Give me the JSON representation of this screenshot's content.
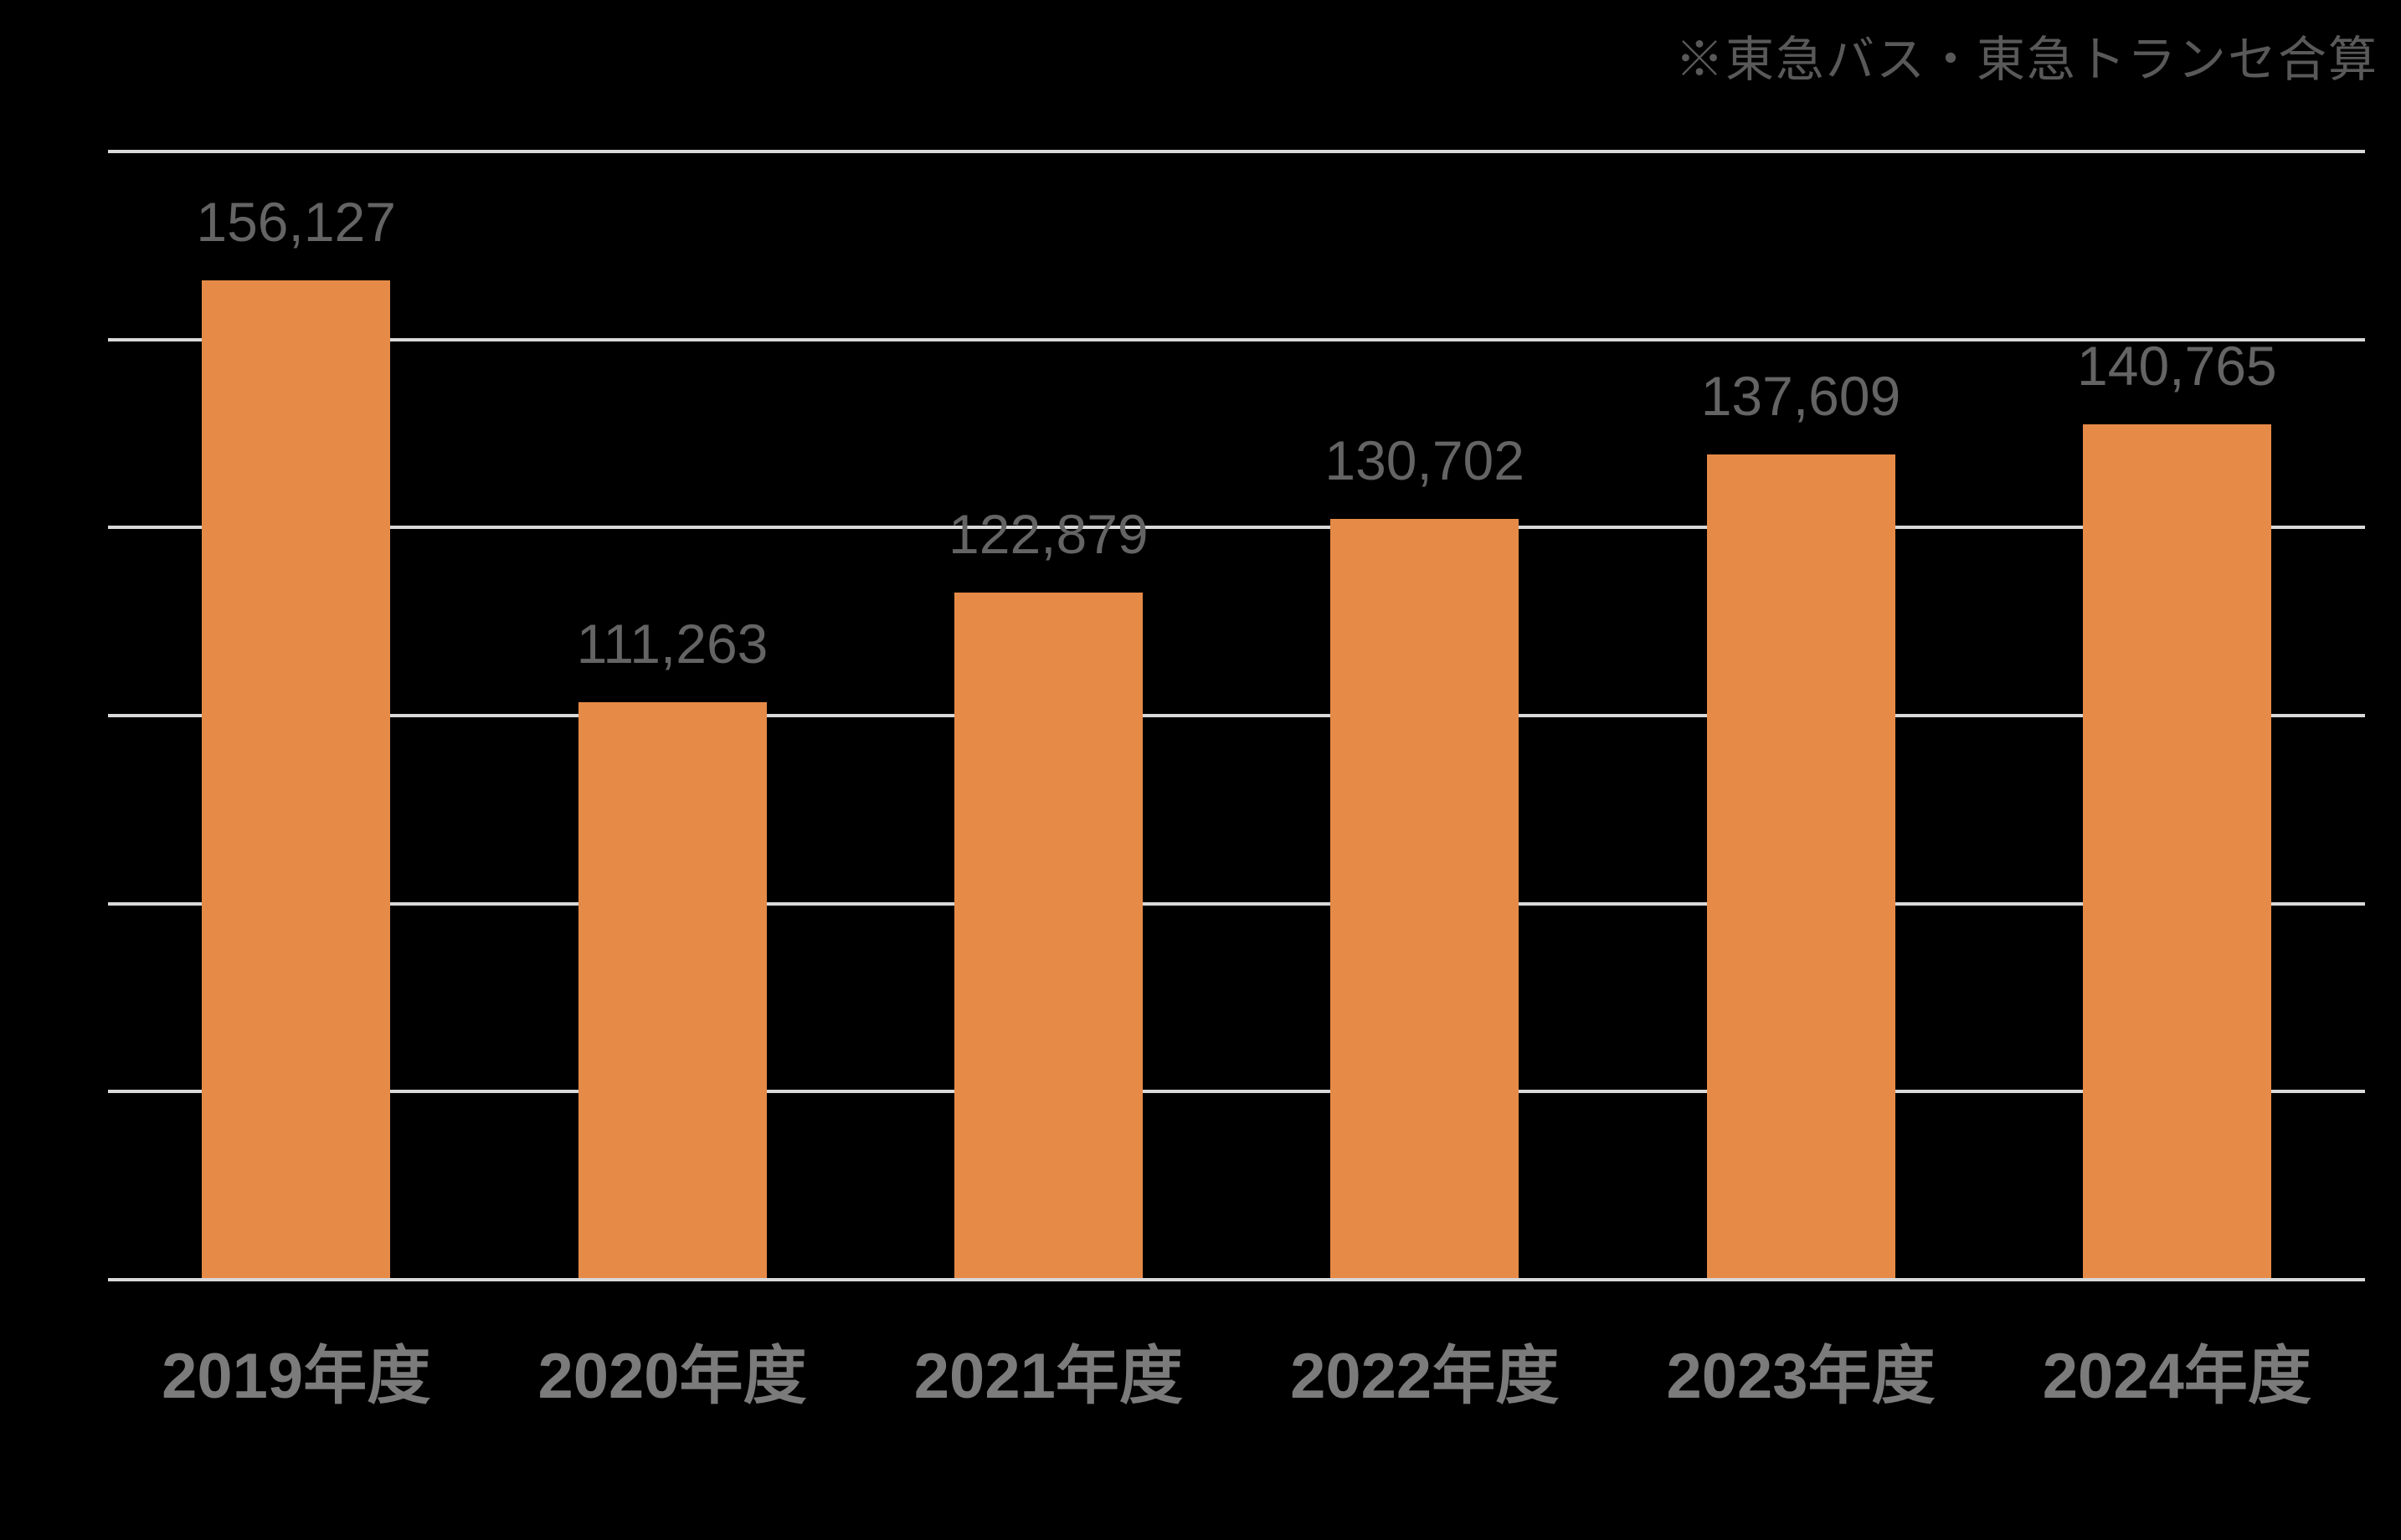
{
  "annotation": "※東急バス・東急トランセ合算",
  "colors": {
    "background": "#000000",
    "bar": "#E68A47",
    "gridline": "#D9D9D9",
    "value_label": "#646464",
    "axis_label": "#7B7B7B",
    "annotation": "#595959"
  },
  "chart_data": {
    "type": "bar",
    "title": "",
    "xlabel": "",
    "ylabel": "",
    "annotation": "※東急バス・東急トランセ合算",
    "categories": [
      "2019年度",
      "2020年度",
      "2021年度",
      "2022年度",
      "2023年度",
      "2024年度"
    ],
    "values": [
      156127,
      111263,
      122879,
      130702,
      137609,
      140765
    ],
    "value_labels": [
      "156,127",
      "111,263",
      "122,879",
      "130,702",
      "137,609",
      "140,765"
    ],
    "ylim": [
      50000,
      170000
    ],
    "gridline_step": 20000,
    "grid": true,
    "legend": false,
    "y_tick_labels_visible": false,
    "bar_color": "#E68A47"
  }
}
